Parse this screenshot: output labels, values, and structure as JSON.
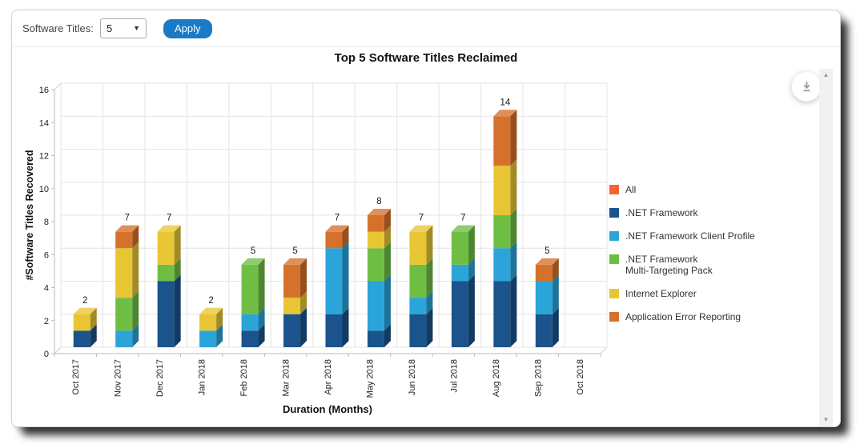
{
  "toolbar": {
    "label": "Software Titles:",
    "dropdown_value": "5",
    "apply_label": "Apply"
  },
  "icons": {
    "dropdown_arrow": "▼",
    "scroll_up": "▲",
    "scroll_down": "▼",
    "download": "download-icon"
  },
  "chart_data": {
    "type": "bar",
    "stacked": true,
    "threed": true,
    "title": "Top 5 Software Titles Reclaimed",
    "xlabel": "Duration (Months)",
    "ylabel": "#Software Titles Recovered",
    "ylim": [
      0,
      16
    ],
    "ytick_step": 2,
    "grid": true,
    "legend_position": "right",
    "categories": [
      "Oct 2017",
      "Nov 2017",
      "Dec 2017",
      "Jan 2018",
      "Feb 2018",
      "Mar 2018",
      "Apr 2018",
      "May 2018",
      "Jun 2018",
      "Jul 2018",
      "Aug 2018",
      "Sep 2018",
      "Oct 2018"
    ],
    "series": [
      {
        "name": "All",
        "color": "#f9622e",
        "values": null
      },
      {
        "name": ".NET Framework",
        "color": "#1b538c",
        "values": [
          1,
          0,
          4,
          0,
          1,
          2,
          2,
          1,
          2,
          4,
          4,
          2,
          0
        ]
      },
      {
        "name": ".NET Framework Client Profile",
        "color": "#2aa4d9",
        "values": [
          0,
          1,
          0,
          1,
          1,
          0,
          4,
          3,
          1,
          1,
          2,
          2,
          0
        ]
      },
      {
        "name": ".NET Framework Multi-Targeting Pack",
        "color": "#6fbe44",
        "values": [
          0,
          2,
          1,
          0,
          3,
          0,
          0,
          2,
          2,
          2,
          2,
          0,
          0
        ]
      },
      {
        "name": "Internet Explorer",
        "color": "#e8c533",
        "values": [
          1,
          3,
          2,
          1,
          0,
          1,
          0,
          1,
          2,
          0,
          3,
          0,
          0
        ]
      },
      {
        "name": "Application Error Reporting",
        "color": "#d6712b",
        "values": [
          0,
          1,
          0,
          0,
          0,
          2,
          1,
          1,
          0,
          0,
          3,
          1,
          0
        ]
      }
    ],
    "totals": [
      2,
      7,
      7,
      2,
      5,
      5,
      7,
      8,
      7,
      7,
      14,
      5,
      0
    ]
  },
  "legend": {
    "items": [
      {
        "label": "All",
        "color": "#f9622e"
      },
      {
        "label": ".NET Framework",
        "color": "#1b538c"
      },
      {
        "label": ".NET Framework Client Profile",
        "color": "#2aa4d9"
      },
      {
        "label": ".NET Framework",
        "label2": "Multi-Targeting Pack",
        "color": "#6fbe44"
      },
      {
        "label": "Internet Explorer",
        "color": "#e8c533"
      },
      {
        "label": "Application Error Reporting",
        "color": "#d6712b"
      }
    ]
  }
}
